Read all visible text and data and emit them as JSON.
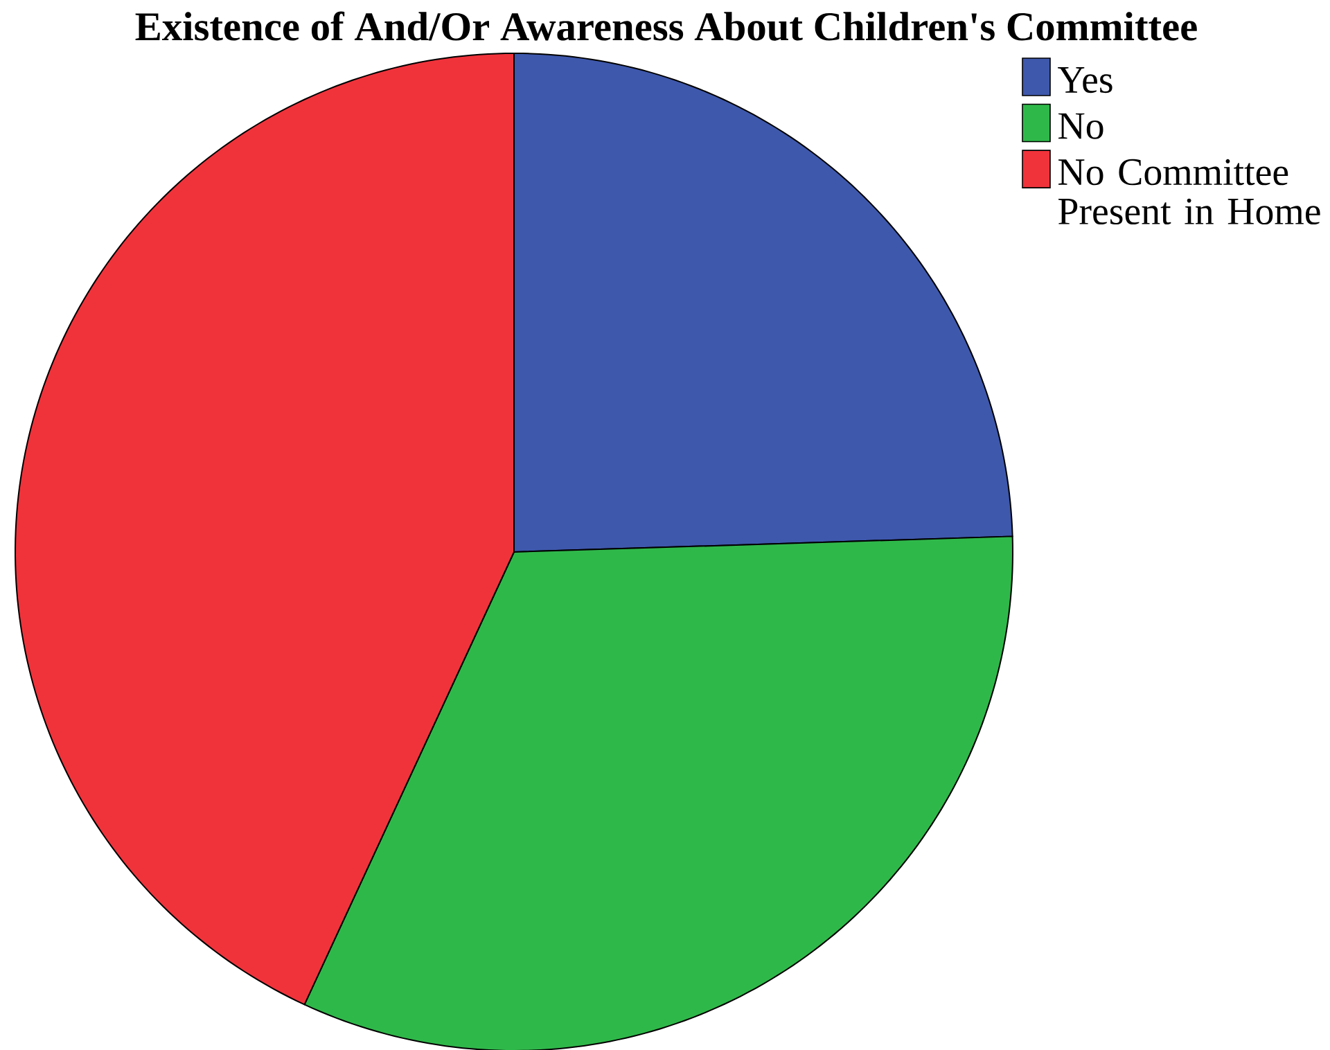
{
  "chart_data": {
    "type": "pie",
    "title": "Existence of And/Or Awareness About Children's Committee",
    "categories": [
      "Yes",
      "No",
      "No Committee Present in Home"
    ],
    "values": [
      24.5,
      32.4,
      43.1
    ],
    "colors": [
      "#3e58ac",
      "#2fb84a",
      "#f0333b"
    ],
    "legend": "top right"
  }
}
